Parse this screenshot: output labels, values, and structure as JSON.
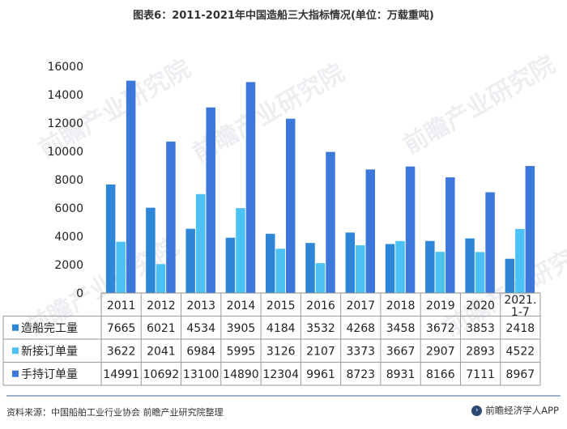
{
  "title": "图表6：2011-2021年中国造船三大指标情况(单位：万载重吨)",
  "watermarks": [
    "前瞻产业研究院",
    "前瞻产业研究院",
    "前瞻产业研究院",
    "前瞻产业研究院",
    "前瞻产业研究院"
  ],
  "footer": {
    "source": "资料来源：中国船舶工业行业协会 前瞻产业研究院整理",
    "brand": "前瞻经济学人APP",
    "brand_icon": "chevron-logo"
  },
  "colors": {
    "series": [
      "#2e86d9",
      "#4cc1f5",
      "#3c78dc"
    ],
    "axis": "#8c8c8c",
    "grid": "#9a9a9a",
    "text": "#222222"
  },
  "chart_data": {
    "type": "bar",
    "ylim": [
      0,
      16000
    ],
    "yticks": [
      0,
      2000,
      4000,
      6000,
      8000,
      10000,
      12000,
      14000,
      16000
    ],
    "categories": [
      "2011",
      "2012",
      "2013",
      "2014",
      "2015",
      "2016",
      "2017",
      "2018",
      "2019",
      "2020",
      "2021.\n1-7"
    ],
    "series": [
      {
        "name": "造船完工量",
        "values": [
          7665,
          6021,
          4534,
          3905,
          4184,
          3532,
          4268,
          3458,
          3672,
          3853,
          2418
        ]
      },
      {
        "name": "新接订单量",
        "values": [
          3622,
          2041,
          6984,
          5995,
          3126,
          2107,
          3373,
          3667,
          2907,
          2893,
          4522
        ]
      },
      {
        "name": "手持订单量",
        "values": [
          14991,
          10692,
          13100,
          14890,
          12304,
          9961,
          8723,
          8931,
          8166,
          7111,
          8967
        ]
      }
    ],
    "legend_placement": "data-table-left",
    "grid": false
  }
}
